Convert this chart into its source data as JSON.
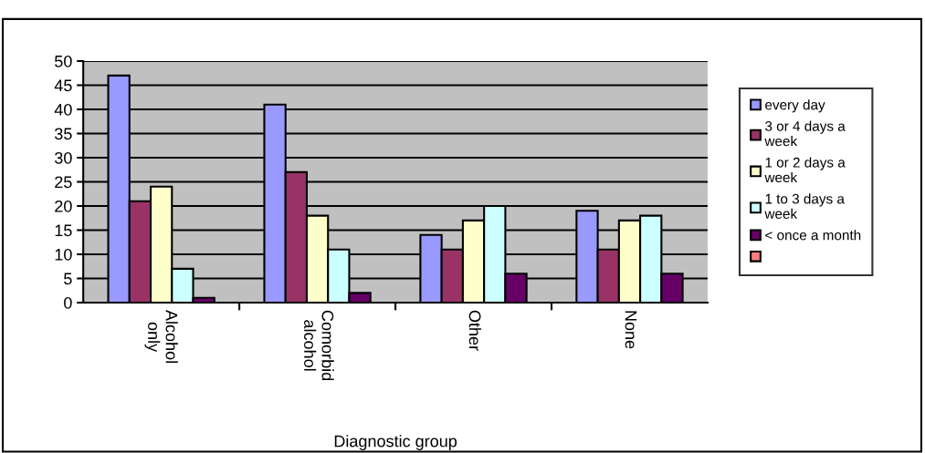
{
  "chart_data": {
    "type": "bar",
    "xlabel": "Diagnostic group",
    "categories": [
      "Alcohol only",
      "Comorbid alcohol",
      "Other",
      "None"
    ],
    "series": [
      {
        "name": "every day",
        "color": "#9999ff",
        "values": [
          47,
          41,
          14,
          19
        ]
      },
      {
        "name": "3 or 4 days a week",
        "color": "#993366",
        "values": [
          21,
          27,
          11,
          11
        ]
      },
      {
        "name": "1 or 2 days a week",
        "color": "#ffffcc",
        "values": [
          24,
          18,
          17,
          17
        ]
      },
      {
        "name": "1 to 3 days a week",
        "color": "#ccffff",
        "values": [
          7,
          11,
          20,
          18
        ]
      },
      {
        "name": "< once a month",
        "color": "#660066",
        "values": [
          1,
          2,
          6,
          6
        ]
      }
    ],
    "ylim": [
      0,
      50
    ],
    "yticks": [
      0,
      5,
      10,
      15,
      20,
      25,
      30,
      35,
      40,
      45,
      50
    ],
    "grid": "y",
    "legend": "right"
  }
}
